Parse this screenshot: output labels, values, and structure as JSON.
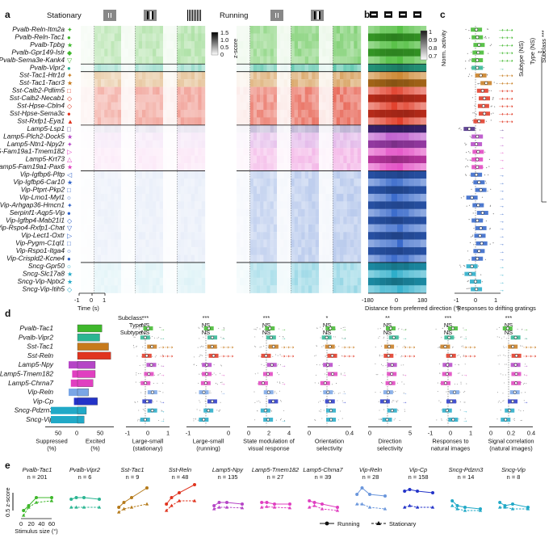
{
  "panel_labels": [
    "a",
    "b",
    "c",
    "d",
    "e"
  ],
  "panel_a": {
    "stationary_label": "Stationary",
    "running_label": "Running",
    "colorbar_title": "z-score",
    "colorbar_ticks": [
      "1.5",
      "1.0",
      "0.5",
      "0"
    ],
    "x_ticks": [
      "-1",
      "0",
      "1"
    ],
    "x_label": "Time (s)"
  },
  "panel_b": {
    "colorbar_title": "Norm. activity",
    "colorbar_ticks": [
      "1",
      "0.9",
      "0.8",
      "0.7"
    ],
    "x_ticks": [
      "-180",
      "0",
      "180"
    ],
    "x_label": "Distance from preferred direction (°)"
  },
  "panel_c": {
    "x_ticks": [
      "-1",
      "0",
      "1"
    ],
    "x_label": "Responses to drifting gratings",
    "legend": [
      "Subtype (NS)",
      "Type (NS)",
      "Subclass ***"
    ],
    "sig_marks": [
      "***",
      "***"
    ]
  },
  "cell_types": [
    {
      "name": "Pvalb-Reln-Itm2a",
      "marker": "✦",
      "color": "#3fb82c"
    },
    {
      "name": "Pvalb-Reln-Tac1",
      "marker": "●",
      "color": "#3fb82c"
    },
    {
      "name": "Pvalb-Tpbg",
      "marker": "★",
      "color": "#3fb82c"
    },
    {
      "name": "Pvalb-Gpr149-Islr",
      "marker": "◆",
      "color": "#3fb82c"
    },
    {
      "name": "Pvalb-Sema3e-Kank4",
      "marker": "▽",
      "color": "#3fb82c"
    },
    {
      "name": "Pvalb-Vipr2",
      "marker": "●",
      "color": "#2bb592"
    },
    {
      "name": "Sst-Tac1-Htr1d",
      "marker": "✦",
      "color": "#c77a1c"
    },
    {
      "name": "Sst-Tac1-Tacr3",
      "marker": "★",
      "color": "#c77a1c"
    },
    {
      "name": "Sst-Calb2-Pdlim5",
      "marker": "□",
      "color": "#e0341f"
    },
    {
      "name": "Sst-Calb2-Necab1",
      "marker": "◇",
      "color": "#e0341f"
    },
    {
      "name": "Sst-Hpse-Cbln4",
      "marker": "◇",
      "color": "#e0341f"
    },
    {
      "name": "Sst-Hpse-Sema3c",
      "marker": "●",
      "color": "#e0341f"
    },
    {
      "name": "Sst-Rxfp1-Eya1",
      "marker": "▲",
      "color": "#e0341f"
    },
    {
      "name": "Lamp5-Lsp1",
      "marker": "□",
      "color": "#462782"
    },
    {
      "name": "Lamp5-Plch2-Dock5",
      "marker": "★",
      "color": "#b545c6"
    },
    {
      "name": "Lamp5-Ntn1-Npy2r",
      "marker": "✦",
      "color": "#b545c6"
    },
    {
      "name": "Lamp5-Fam19a1-Tmem182",
      "marker": "▷",
      "color": "#e040c0"
    },
    {
      "name": "Lamp5-Krt73",
      "marker": "△",
      "color": "#e040c0"
    },
    {
      "name": "Lamp5-Fam19a1-Pax6",
      "marker": "★",
      "color": "#e040c0"
    },
    {
      "name": "Vip-Igfbp6-Pltp",
      "marker": "◁",
      "color": "#2f62c8"
    },
    {
      "name": "Vip-Igfbp6-Car10",
      "marker": "★",
      "color": "#2f62c8"
    },
    {
      "name": "Vip-Ptprt-Pkp2",
      "marker": "□",
      "color": "#2f62c8"
    },
    {
      "name": "Vip-Lmo1-Myl1",
      "marker": "○",
      "color": "#2f62c8"
    },
    {
      "name": "Vip-Arhgap36-Hmcn1",
      "marker": "✦",
      "color": "#2f62c8"
    },
    {
      "name": "Serpinf1-Aqp5-Vip",
      "marker": "●",
      "color": "#2f62c8"
    },
    {
      "name": "Vip-Igfbp4-Mab21l1",
      "marker": "◇",
      "color": "#2f62c8"
    },
    {
      "name": "Vip-Rspo4-Rxfp1-Chat",
      "marker": "▽",
      "color": "#2f62c8"
    },
    {
      "name": "Vip-Lect1-Oxtr",
      "marker": "▷",
      "color": "#2f62c8"
    },
    {
      "name": "Vip-Pygm-C1ql1",
      "marker": "□",
      "color": "#2f62c8"
    },
    {
      "name": "Vip-Rspo1-Itga4",
      "marker": "○",
      "color": "#2f62c8"
    },
    {
      "name": "Vip-Crispld2-Kcne4",
      "marker": "●",
      "color": "#2f62c8"
    },
    {
      "name": "Sncg-Gpr50",
      "marker": "○",
      "color": "#21a9c7"
    },
    {
      "name": "Sncg-Slc17a8",
      "marker": "★",
      "color": "#21a9c7"
    },
    {
      "name": "Sncg-Vip-Nptx2",
      "marker": "★",
      "color": "#21a9c7"
    },
    {
      "name": "Sncg-Vip-Itih5",
      "marker": "◇",
      "color": "#21a9c7"
    }
  ],
  "panel_d": {
    "row_header": [
      "Subclass:",
      "Type:",
      "Subtype:"
    ],
    "types": [
      {
        "name": "Pvalb-Tac1",
        "color": "#3fb82c",
        "suppressed": 0,
        "excited": 55
      },
      {
        "name": "Pvalb-Vipr2",
        "color": "#2bb592",
        "suppressed": 0,
        "excited": 50
      },
      {
        "name": "Sst-Tac1",
        "color": "#c77a1c",
        "suppressed": 0,
        "excited": 70
      },
      {
        "name": "Sst-Reln",
        "color": "#e0341f",
        "suppressed": 0,
        "excited": 75
      },
      {
        "name": "Lamp5-Npy",
        "color": "#b545c6",
        "suppressed": 20,
        "excited": 40
      },
      {
        "name": "Lamp5-Tmem182",
        "color": "#e040c0",
        "suppressed": 12,
        "excited": 40
      },
      {
        "name": "Lamp5-Chrna7",
        "color": "#e040c0",
        "suppressed": 15,
        "excited": 35
      },
      {
        "name": "Vip-Reln",
        "color": "#7aa6e6",
        "suppressed": 20,
        "excited": 25
      },
      {
        "name": "Vip-Cp",
        "color": "#2333c8",
        "suppressed": 8,
        "excited": 45
      },
      {
        "name": "Sncg-Pdzrn3",
        "color": "#21a9c7",
        "suppressed": 60,
        "excited": 20
      },
      {
        "name": "Sncg-Vip",
        "color": "#21a9c7",
        "suppressed": 60,
        "excited": 15
      }
    ],
    "bar_axis": {
      "ticks": [
        "50",
        "0",
        "50"
      ],
      "suppressed_label": "Suppressed\n(%)",
      "excited_label": "Excited\n(%)"
    },
    "metrics": [
      {
        "label": "Large-small\n(stationary)",
        "ticks": [
          "-1",
          "0",
          "1"
        ],
        "sig": [
          "***",
          "NS",
          "NS"
        ]
      },
      {
        "label": "Large-small\n(running)",
        "ticks": [
          "-1",
          "0"
        ],
        "sig": [
          "***",
          "NS",
          "NS"
        ]
      },
      {
        "label": "State modulation of\nvisual response",
        "ticks": [
          "0",
          "2",
          "4"
        ],
        "sig": [
          "***",
          "NS",
          "NS"
        ]
      },
      {
        "label": "Orientation\nselectivity",
        "ticks": [
          "0",
          "0.4"
        ],
        "sig": [
          "*",
          "NS",
          "NS"
        ]
      },
      {
        "label": "Direction\nselectivity",
        "ticks": [
          "0",
          "5"
        ],
        "sig": [
          "**",
          "NS",
          "NS"
        ]
      },
      {
        "label": "Responses to\nnatural images",
        "ticks": [
          "-1",
          "0",
          "1"
        ],
        "sig": [
          "***",
          "NS",
          "NS"
        ]
      },
      {
        "label": "Signal correlation\n(natural images)",
        "ticks": [
          "0",
          "0.2",
          "0.4"
        ],
        "sig": [
          "***",
          "NS",
          "NS"
        ]
      }
    ]
  },
  "panel_e": {
    "y_label": "0.5 z-score",
    "x_ticks": [
      "0",
      "20",
      "40",
      "60"
    ],
    "x_label": "Stimulus size (°)",
    "legend_running": "Running",
    "legend_stationary": "Stationary",
    "series_names": [
      "Running",
      "Stationary"
    ],
    "chart_data": [
      {
        "type": "line",
        "title": "Pvalb-Tac1",
        "n": "n = 201",
        "color": "#3fb82c",
        "x": [
          5,
          15,
          30,
          60
        ],
        "running": [
          0.2,
          0.35,
          0.6,
          0.6
        ],
        "stationary": [
          0.05,
          0.3,
          0.45,
          0.5
        ]
      },
      {
        "type": "line",
        "title": "Pvalb-Vipr2",
        "n": "n = 6",
        "color": "#2bb592",
        "x": [
          5,
          15,
          30,
          60
        ],
        "running": [
          0.55,
          0.6,
          0.6,
          0.55
        ],
        "stationary": [
          0.3,
          0.3,
          0.3,
          0.3
        ]
      },
      {
        "type": "line",
        "title": "Sst-Tac1",
        "n": "n = 9",
        "color": "#b57a1a",
        "x": [
          5,
          15,
          30,
          60
        ],
        "running": [
          0.3,
          0.45,
          0.6,
          0.9
        ],
        "stationary": [
          0.15,
          0.25,
          0.3,
          0.4
        ]
      },
      {
        "type": "line",
        "title": "Sst-Reln",
        "n": "n = 48",
        "color": "#e0341f",
        "x": [
          5,
          15,
          30,
          60
        ],
        "running": [
          0.4,
          0.6,
          0.75,
          1.0
        ],
        "stationary": [
          0.2,
          0.35,
          0.5,
          0.5
        ]
      },
      {
        "type": "line",
        "title": "Lamp5-Npy",
        "n": "n = 135",
        "color": "#b545c6",
        "x": [
          5,
          15,
          30,
          60
        ],
        "running": [
          0.35,
          0.45,
          0.45,
          0.4
        ],
        "stationary": [
          0.25,
          0.3,
          0.3,
          0.28
        ]
      },
      {
        "type": "line",
        "title": "Lamp5-Tmem182",
        "n": "n = 27",
        "color": "#e040c0",
        "x": [
          5,
          15,
          30,
          60
        ],
        "running": [
          0.45,
          0.45,
          0.4,
          0.4
        ],
        "stationary": [
          0.3,
          0.32,
          0.3,
          0.28
        ]
      },
      {
        "type": "line",
        "title": "Lamp5-Chrna7",
        "n": "n = 39",
        "color": "#e040c0",
        "x": [
          5,
          15,
          30,
          60
        ],
        "running": [
          0.5,
          0.45,
          0.4,
          0.3
        ],
        "stationary": [
          0.3,
          0.35,
          0.25,
          0.2
        ]
      },
      {
        "type": "line",
        "title": "Vip-Reln",
        "n": "n = 28",
        "color": "#6a96dc",
        "x": [
          5,
          15,
          30,
          60
        ],
        "running": [
          0.7,
          0.9,
          0.7,
          0.65
        ],
        "stationary": [
          0.4,
          0.4,
          0.3,
          0.25
        ]
      },
      {
        "type": "line",
        "title": "Vip-Cp",
        "n": "n = 158",
        "color": "#2333c8",
        "x": [
          5,
          15,
          30,
          60
        ],
        "running": [
          0.8,
          0.85,
          0.8,
          0.75
        ],
        "stationary": [
          0.3,
          0.35,
          0.3,
          0.3
        ]
      },
      {
        "type": "line",
        "title": "Sncg-Pdzrn3",
        "n": "n = 14",
        "color": "#21a9c7",
        "x": [
          5,
          15,
          30,
          60
        ],
        "running": [
          0.5,
          0.35,
          0.3,
          0.25
        ],
        "stationary": [
          0.35,
          0.25,
          0.2,
          0.2
        ]
      },
      {
        "type": "line",
        "title": "Sncg-Vip",
        "n": "n = 8",
        "color": "#21a9c7",
        "x": [
          5,
          15,
          30,
          60
        ],
        "running": [
          0.45,
          0.35,
          0.4,
          0.3
        ],
        "stationary": [
          0.3,
          0.3,
          0.25,
          0.25
        ]
      }
    ]
  }
}
